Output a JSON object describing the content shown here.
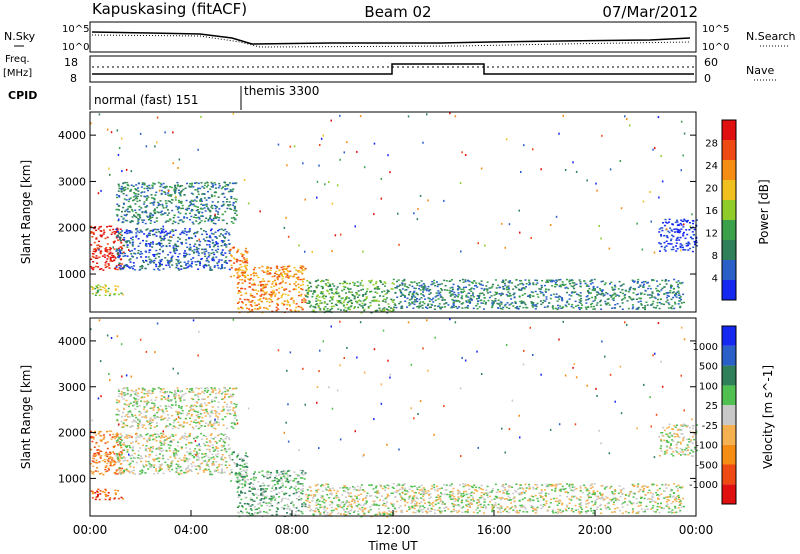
{
  "header": {
    "station": "Kapuskasing (fitACF)",
    "beam": "Beam 02",
    "date": "07/Mar/2012"
  },
  "top_panel": {
    "nsky_label": "N.Sky",
    "nsearch_label": "N.Search",
    "y_ticks_left": [
      "10^5",
      "10^0"
    ],
    "y_ticks_right": [
      "10^5",
      "10^0"
    ]
  },
  "freq_panel": {
    "freq_label_line1": "Freq.",
    "freq_label_line2": "[MHz]",
    "nave_label": "Nave",
    "y_ticks_left": [
      "18",
      "8"
    ],
    "y_ticks_right": [
      "60",
      "0"
    ]
  },
  "cpid": {
    "label": "CPID",
    "segments": [
      {
        "name": "normal (fast) 151",
        "start_hour": 0,
        "end_hour": 6.0
      },
      {
        "name": "themis 3300",
        "start_hour": 6.0,
        "end_hour": 24.0
      }
    ]
  },
  "colors": {
    "power": [
      "#1428f0",
      "#2b5fc8",
      "#2f7f5a",
      "#3aa04a",
      "#8fcc2a",
      "#f0c020",
      "#f58c14",
      "#f04a14",
      "#e01010"
    ],
    "velocity": [
      "#e01010",
      "#f04a14",
      "#f58c14",
      "#f5b050",
      "#c8c8c8",
      "#50c050",
      "#2f7f5a",
      "#2b5fc8",
      "#1428f0"
    ]
  },
  "chart_data": [
    {
      "type": "heatmap",
      "title": "",
      "xlabel": "",
      "ylabel": "Slant Range [km]",
      "colorbar_label": "Power [dB]",
      "colorbar_ticks": [
        "4",
        "8",
        "12",
        "16",
        "20",
        "24",
        "28"
      ],
      "xlim": [
        0,
        24
      ],
      "ylim": [
        180,
        4500
      ],
      "y_ticks": [
        "1000",
        "2000",
        "3000",
        "4000"
      ],
      "echo_regions": [
        {
          "start_hour": 0.0,
          "end_hour": 1.3,
          "min_km": 1100,
          "max_km": 2050,
          "level": 8
        },
        {
          "start_hour": 0.0,
          "end_hour": 1.3,
          "min_km": 550,
          "max_km": 780,
          "level": 4
        },
        {
          "start_hour": 1.0,
          "end_hour": 5.8,
          "min_km": 2100,
          "max_km": 3000,
          "level": 2
        },
        {
          "start_hour": 1.0,
          "end_hour": 5.5,
          "min_km": 1100,
          "max_km": 2000,
          "level": 1
        },
        {
          "start_hour": 5.5,
          "end_hour": 6.2,
          "min_km": 950,
          "max_km": 1600,
          "level": 6
        },
        {
          "start_hour": 5.8,
          "end_hour": 8.5,
          "min_km": 180,
          "max_km": 1200,
          "level": 6
        },
        {
          "start_hour": 8.5,
          "end_hour": 12.0,
          "min_km": 180,
          "max_km": 900,
          "level": 3
        },
        {
          "start_hour": 12.0,
          "end_hour": 23.5,
          "min_km": 250,
          "max_km": 900,
          "level": 2
        },
        {
          "start_hour": 22.5,
          "end_hour": 24.0,
          "min_km": 1500,
          "max_km": 2200,
          "level": 0
        }
      ]
    },
    {
      "type": "heatmap",
      "title": "",
      "xlabel": "Time UT",
      "ylabel": "Slant Range [km]",
      "colorbar_label": "Velocity [m s^-1]",
      "colorbar_ticks": [
        "-1000",
        "-500",
        "-100",
        "-25",
        "25",
        "100",
        "500",
        "1000"
      ],
      "xlim": [
        0,
        24
      ],
      "ylim": [
        180,
        4500
      ],
      "y_ticks": [
        "1000",
        "2000",
        "3000",
        "4000"
      ],
      "x_ticks": [
        "00:00",
        "04:00",
        "08:00",
        "12:00",
        "16:00",
        "20:00",
        "00:00"
      ],
      "echo_regions": [
        {
          "start_hour": 0.0,
          "end_hour": 1.3,
          "min_km": 1100,
          "max_km": 2050,
          "level": 2
        },
        {
          "start_hour": 0.0,
          "end_hour": 1.3,
          "min_km": 550,
          "max_km": 780,
          "level": 1
        },
        {
          "start_hour": 1.0,
          "end_hour": 5.8,
          "min_km": 2100,
          "max_km": 3000,
          "level": 4
        },
        {
          "start_hour": 1.0,
          "end_hour": 5.5,
          "min_km": 1100,
          "max_km": 2000,
          "level": 4
        },
        {
          "start_hour": 5.5,
          "end_hour": 6.2,
          "min_km": 950,
          "max_km": 1600,
          "level": 5
        },
        {
          "start_hour": 5.8,
          "end_hour": 8.5,
          "min_km": 180,
          "max_km": 1200,
          "level": 5
        },
        {
          "start_hour": 8.5,
          "end_hour": 12.0,
          "min_km": 180,
          "max_km": 900,
          "level": 4
        },
        {
          "start_hour": 12.0,
          "end_hour": 23.5,
          "min_km": 250,
          "max_km": 900,
          "level": 4
        },
        {
          "start_hour": 22.5,
          "end_hour": 24.0,
          "min_km": 1500,
          "max_km": 2200,
          "level": 4
        }
      ]
    }
  ]
}
